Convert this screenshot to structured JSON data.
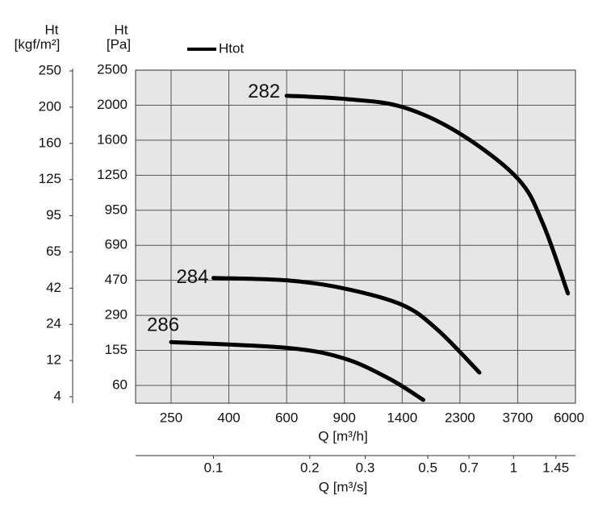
{
  "chart_data": {
    "type": "line",
    "legend": "Htot",
    "ylabel": [
      "Ht",
      "[Pa]"
    ],
    "y2label": [
      "Ht",
      "[kgf/m²]"
    ],
    "xlabel": "Q [m³/h]",
    "x2label": "Q [m³/s]",
    "xlim": [
      200,
      6000
    ],
    "xticks": [
      250,
      400,
      600,
      900,
      1400,
      2300,
      3700,
      6000
    ],
    "x2ticks": [
      0.1,
      0.2,
      0.3,
      0.5,
      0.7,
      1,
      1.45
    ],
    "ylim": [
      0,
      2500
    ],
    "yticks": [
      60,
      155,
      290,
      470,
      690,
      950,
      1250,
      1600,
      2000,
      2500
    ],
    "y2lim": [
      0,
      250
    ],
    "y2ticks": [
      4,
      12,
      24,
      42,
      65,
      95,
      125,
      160,
      200,
      250
    ],
    "grid": true,
    "series": [
      {
        "name": "282",
        "color": "#000000",
        "x": [
          600,
          900,
          1400,
          2300,
          3700,
          4700,
          5700
        ],
        "values": [
          2135,
          2090,
          1980,
          1675,
          1222,
          853,
          403
        ]
      },
      {
        "name": "284",
        "color": "#000000",
        "x": [
          360,
          600,
          900,
          1400,
          1945,
          2773
        ],
        "values": [
          485,
          470,
          428,
          344,
          236,
          95
        ]
      },
      {
        "name": "286",
        "color": "#000000",
        "x": [
          250,
          600,
          900,
          1290,
          1730
        ],
        "values": [
          187,
          165,
          133,
          78,
          11
        ]
      }
    ]
  }
}
